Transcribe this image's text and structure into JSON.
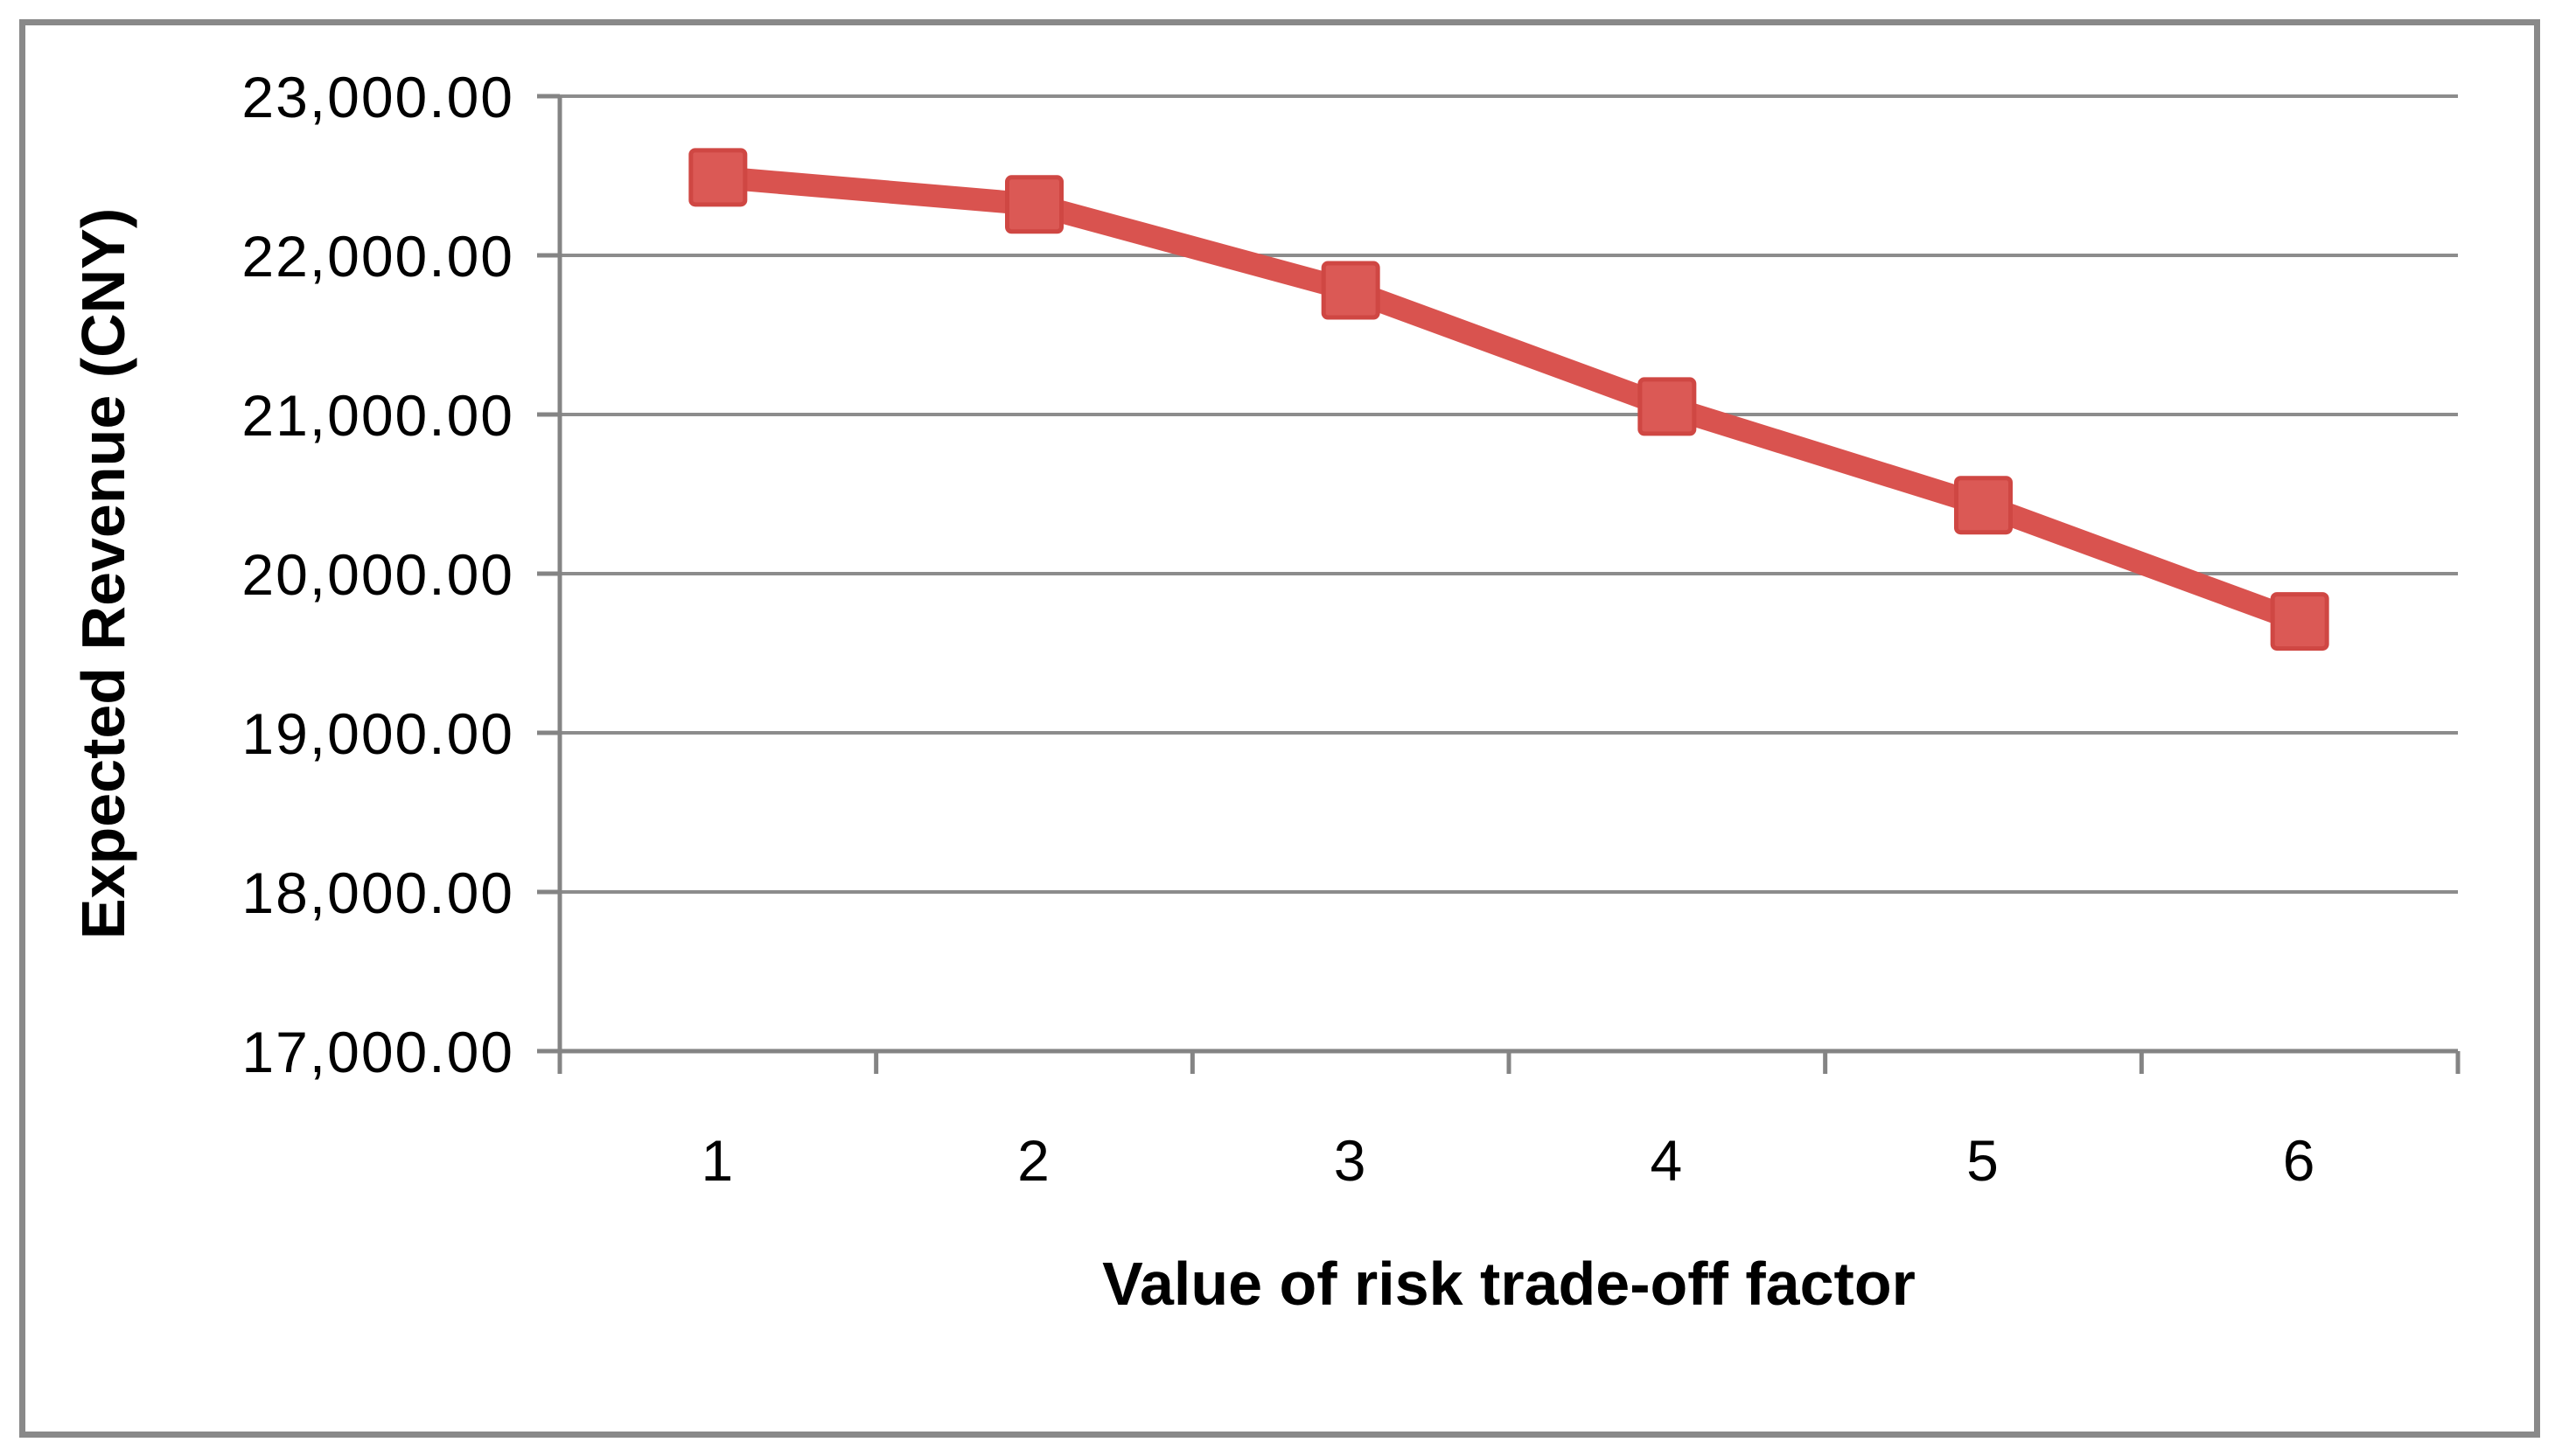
{
  "chart_data": {
    "type": "line",
    "title": "",
    "xlabel": "Value of risk trade-off factor",
    "ylabel": "Expected Revenue (CNY)",
    "categories": [
      "1",
      "2",
      "3",
      "4",
      "5",
      "6"
    ],
    "series": [
      {
        "values": [
          22490,
          22320,
          21780,
          21050,
          20430,
          19700
        ],
        "line_color": "#d9534f",
        "marker": "square",
        "marker_fill": "#db5955",
        "marker_border": "#cf4743"
      }
    ],
    "ylim": [
      17000,
      23000
    ],
    "ytick_interval": 1000,
    "ytick_labels": [
      "17,000.00",
      "18,000.00",
      "19,000.00",
      "20,000.00",
      "21,000.00",
      "22,000.00",
      "23,000.00"
    ],
    "grid": true,
    "legend_position": "none",
    "gridline_color": "#8c8c8c",
    "axis_color": "#848484",
    "text_color": "#000000",
    "frame_border_color": "#898989",
    "background_color": "#ffffff"
  }
}
